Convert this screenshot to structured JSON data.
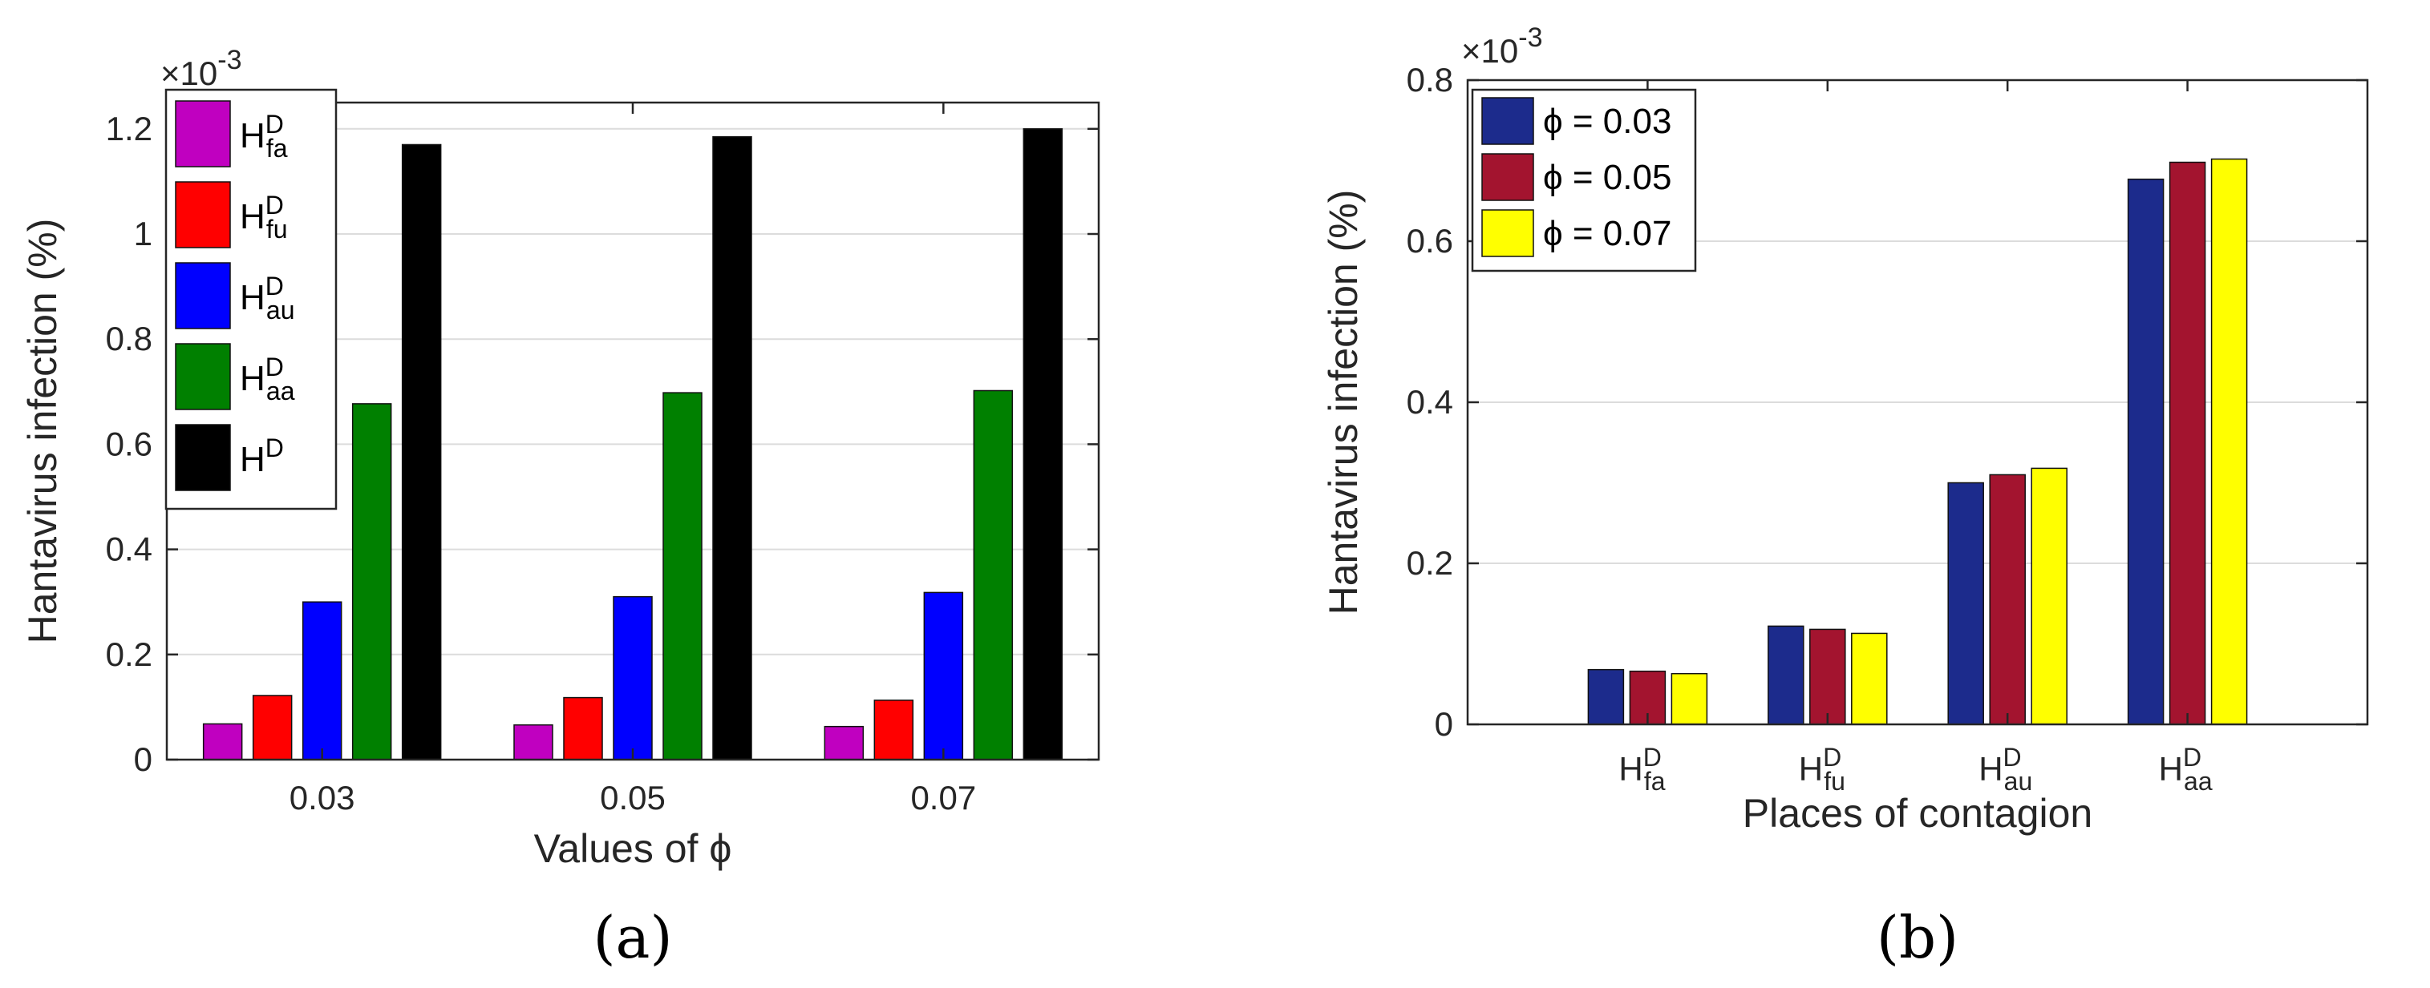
{
  "chart_data": [
    {
      "panel_label": "(a)",
      "type": "bar",
      "xlabel": "Values of ϕ",
      "ylabel": "Hantavirus infection (%)",
      "exponent_label": "×10",
      "exponent_power": "-3",
      "categories": [
        "0.03",
        "0.05",
        "0.07"
      ],
      "ylim": [
        0,
        1.25
      ],
      "yticks": [
        "0",
        "0.2",
        "0.4",
        "0.6",
        "0.8",
        "1",
        "1.2"
      ],
      "ytick_values": [
        0,
        0.2,
        0.4,
        0.6,
        0.8,
        1.0,
        1.2
      ],
      "grid": true,
      "legend_position": "top-left",
      "series": [
        {
          "name": "H",
          "sup": "D",
          "sub": "fa",
          "color": "#c000c0",
          "values": [
            0.068,
            0.066,
            0.063
          ]
        },
        {
          "name": "H",
          "sup": "D",
          "sub": "fu",
          "color": "#ff0000",
          "values": [
            0.122,
            0.118,
            0.113
          ]
        },
        {
          "name": "H",
          "sup": "D",
          "sub": "au",
          "color": "#0000ff",
          "values": [
            0.3,
            0.31,
            0.318
          ]
        },
        {
          "name": "H",
          "sup": "D",
          "sub": "aa",
          "color": "#008000",
          "values": [
            0.677,
            0.698,
            0.702
          ]
        },
        {
          "name": "H",
          "sup": "D",
          "sub": "",
          "color": "#000000",
          "values": [
            1.17,
            1.185,
            1.2
          ]
        }
      ]
    },
    {
      "panel_label": "(b)",
      "type": "bar",
      "xlabel": "Places of contagion",
      "ylabel": "Hantavirus infection (%)",
      "exponent_label": "×10",
      "exponent_power": "-3",
      "categories": [
        {
          "name": "H",
          "sup": "D",
          "sub": "fa"
        },
        {
          "name": "H",
          "sup": "D",
          "sub": "fu"
        },
        {
          "name": "H",
          "sup": "D",
          "sub": "au"
        },
        {
          "name": "H",
          "sup": "D",
          "sub": "aa"
        }
      ],
      "ylim": [
        0,
        0.8
      ],
      "yticks": [
        "0",
        "0.2",
        "0.4",
        "0.6",
        "0.8"
      ],
      "ytick_values": [
        0,
        0.2,
        0.4,
        0.6,
        0.8
      ],
      "grid": true,
      "legend_position": "top-left",
      "series": [
        {
          "name": "ϕ = 0.03",
          "color": "#1c2b8c",
          "values": [
            0.068,
            0.122,
            0.3,
            0.677
          ]
        },
        {
          "name": "ϕ = 0.05",
          "color": "#a3142f",
          "values": [
            0.066,
            0.118,
            0.31,
            0.698
          ]
        },
        {
          "name": "ϕ = 0.07",
          "color": "#ffff00",
          "values": [
            0.063,
            0.113,
            0.318,
            0.702
          ]
        }
      ]
    }
  ]
}
